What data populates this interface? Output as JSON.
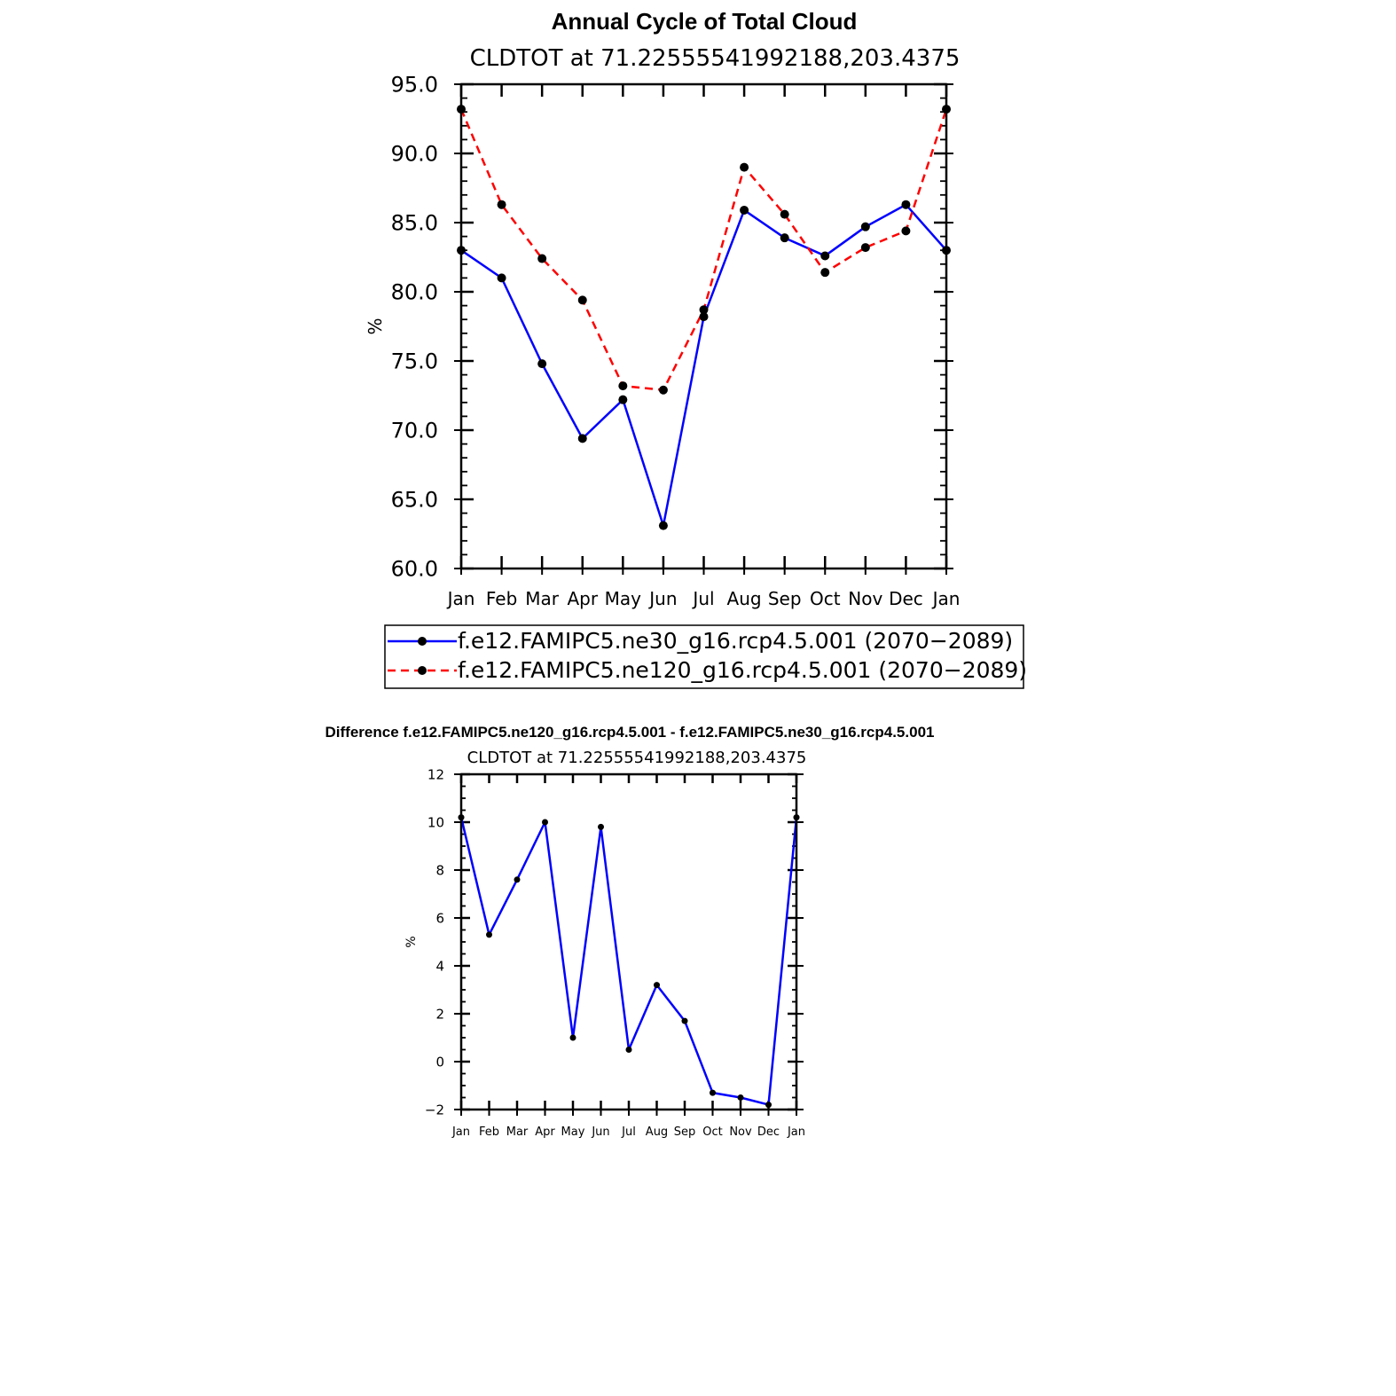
{
  "chart_data": [
    {
      "type": "line",
      "title": "Annual Cycle of Total Cloud",
      "subtitle": "CLDTOT at 71.22555541992188,203.4375",
      "xlabel": "",
      "ylabel": "%",
      "categories": [
        "Jan",
        "Feb",
        "Mar",
        "Apr",
        "May",
        "Jun",
        "Jul",
        "Aug",
        "Sep",
        "Oct",
        "Nov",
        "Dec",
        "Jan"
      ],
      "ylim": [
        60,
        95
      ],
      "yticks": [
        "60.0",
        "65.0",
        "70.0",
        "75.0",
        "80.0",
        "85.0",
        "90.0",
        "95.0"
      ],
      "grid": false,
      "legend": "bottom",
      "series": [
        {
          "name": "f.e12.FAMIPC5.ne30_g16.rcp4.5.001 (2070−2089)",
          "color": "#0000ff",
          "dash": "solid",
          "values": [
            83.0,
            81.0,
            74.8,
            69.4,
            72.2,
            63.1,
            78.2,
            85.9,
            83.9,
            82.6,
            84.7,
            86.3,
            83.0
          ]
        },
        {
          "name": "f.e12.FAMIPC5.ne120_g16.rcp4.5.001 (2070−2089)",
          "color": "#ff0000",
          "dash": "dashed",
          "values": [
            93.2,
            86.3,
            82.4,
            79.4,
            73.2,
            72.9,
            78.7,
            89.0,
            85.6,
            81.4,
            83.2,
            84.4,
            93.2
          ]
        }
      ]
    },
    {
      "type": "line",
      "title": "Difference f.e12.FAMIPC5.ne120_g16.rcp4.5.001 - f.e12.FAMIPC5.ne30_g16.rcp4.5.001",
      "subtitle": "CLDTOT at 71.22555541992188,203.4375",
      "xlabel": "",
      "ylabel": "%",
      "categories": [
        "Jan",
        "Feb",
        "Mar",
        "Apr",
        "May",
        "Jun",
        "Jul",
        "Aug",
        "Sep",
        "Oct",
        "Nov",
        "Dec",
        "Jan"
      ],
      "ylim": [
        -2,
        12
      ],
      "yticks": [
        "−2",
        "0",
        "2",
        "4",
        "6",
        "8",
        "10",
        "12"
      ],
      "grid": false,
      "series": [
        {
          "color": "#0000ff",
          "dash": "solid",
          "values": [
            10.2,
            5.3,
            7.6,
            10.0,
            1.0,
            9.8,
            0.5,
            3.2,
            1.7,
            -1.3,
            -1.5,
            -1.8,
            10.2
          ]
        }
      ]
    }
  ]
}
